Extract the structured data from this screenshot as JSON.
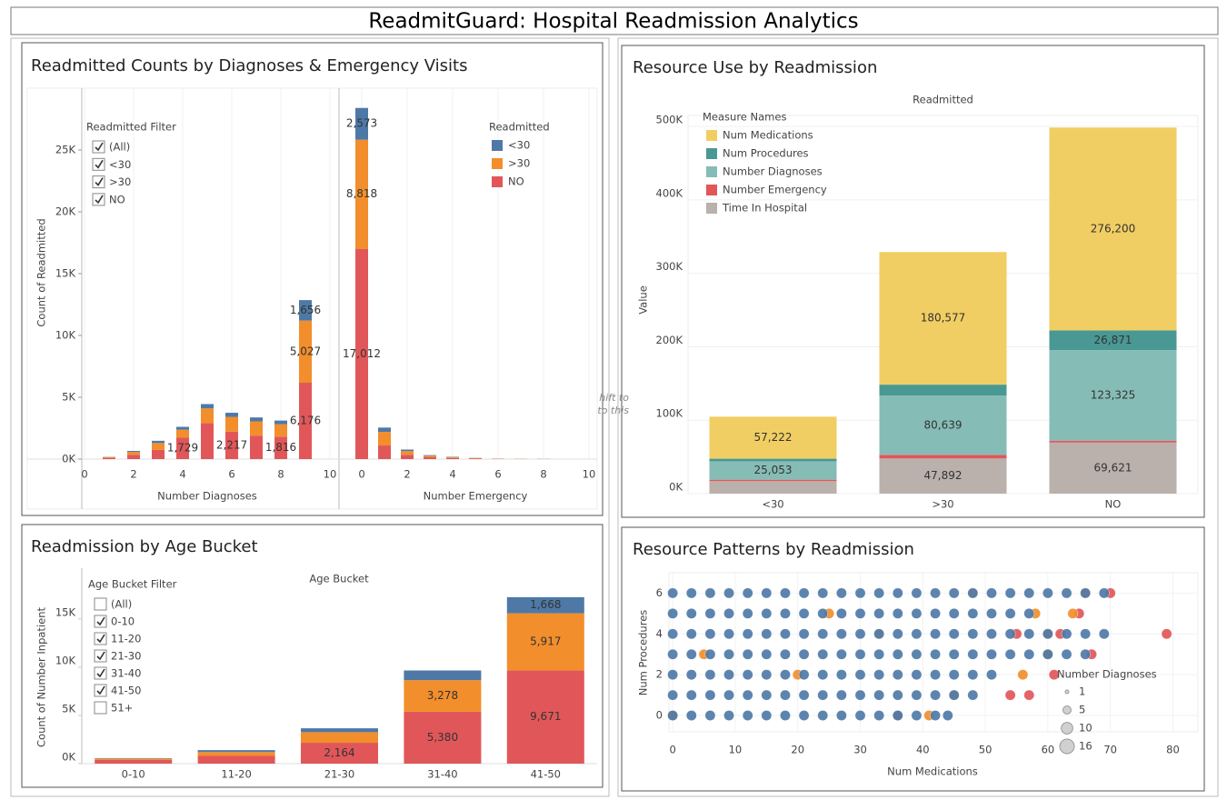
{
  "title": "ReadmitGuard: Hospital Readmission Analytics",
  "chart_data": [
    {
      "type": "bar",
      "stacked": true,
      "title": "Readmitted Counts by Diagnoses & Emergency Visits",
      "y_label": "Count of Readmitted",
      "ylim": [
        0,
        30000
      ],
      "yticks": [
        {
          "value": 0,
          "label": "0K"
        },
        {
          "value": 5000,
          "label": "5K"
        },
        {
          "value": 10000,
          "label": "10K"
        },
        {
          "value": 15000,
          "label": "15K"
        },
        {
          "value": 20000,
          "label": "20K"
        },
        {
          "value": 25000,
          "label": "25K"
        }
      ],
      "grid": true,
      "panels": [
        {
          "x_label": "Number Diagnoses",
          "x": [
            1,
            2,
            3,
            4,
            5,
            6,
            7,
            8,
            9
          ],
          "xlim": [
            0,
            10
          ],
          "xticks": [
            0,
            2,
            4,
            6,
            8,
            10
          ],
          "series": [
            {
              "name": "NO",
              "color": "#e15759",
              "values": [
                100,
                350,
                750,
                1729,
                2900,
                2217,
                1900,
                1816,
                6176
              ],
              "value_labels": [
                null,
                null,
                null,
                "1,729",
                null,
                "2,217",
                null,
                "1,816",
                "6,176"
              ]
            },
            {
              "name": ">30",
              "color": "#f28e2b",
              "values": [
                60,
                230,
                550,
                650,
                1200,
                1200,
                1150,
                1000,
                5027
              ],
              "value_labels": [
                null,
                null,
                null,
                null,
                null,
                null,
                null,
                null,
                "5,027"
              ]
            },
            {
              "name": "<30",
              "color": "#4e79a7",
              "values": [
                20,
                80,
                180,
                230,
                350,
                330,
                320,
                300,
                1656
              ],
              "value_labels": [
                null,
                null,
                null,
                null,
                null,
                null,
                null,
                null,
                "1,656"
              ]
            }
          ]
        },
        {
          "x_label": "Number Emergency",
          "x": [
            0,
            1,
            2,
            3,
            4,
            5,
            6,
            7,
            8
          ],
          "xlim": [
            0,
            10
          ],
          "xticks": [
            0,
            2,
            4,
            6,
            8,
            10
          ],
          "series": [
            {
              "name": "NO",
              "color": "#e15759",
              "values": [
                17012,
                1100,
                350,
                150,
                90,
                40,
                20,
                10,
                8
              ],
              "value_labels": [
                "17,012",
                null,
                null,
                null,
                null,
                null,
                null,
                null,
                null
              ]
            },
            {
              "name": ">30",
              "color": "#f28e2b",
              "values": [
                8818,
                1100,
                300,
                120,
                70,
                40,
                15,
                10,
                6
              ],
              "value_labels": [
                "8,818",
                null,
                null,
                null,
                null,
                null,
                null,
                null,
                null
              ]
            },
            {
              "name": "<30",
              "color": "#4e79a7",
              "values": [
                2573,
                350,
                120,
                50,
                30,
                15,
                5,
                3,
                3
              ],
              "value_labels": [
                "2,573",
                null,
                null,
                null,
                null,
                null,
                null,
                null,
                null
              ]
            }
          ]
        }
      ],
      "legend": {
        "title": "Readmitted",
        "position": "top-right",
        "entries": [
          "<30",
          ">30",
          "NO"
        ],
        "colors": [
          "#4e79a7",
          "#f28e2b",
          "#e15759"
        ]
      },
      "filter": {
        "title": "Readmitted Filter",
        "items": [
          {
            "label": "(All)",
            "checked": true
          },
          {
            "label": "<30",
            "checked": true
          },
          {
            "label": ">30",
            "checked": true
          },
          {
            "label": "NO",
            "checked": true
          }
        ]
      },
      "drag_hint": [
        "hift to",
        "to this"
      ]
    },
    {
      "type": "bar",
      "stacked": true,
      "title": "Resource Use by Readmission",
      "header": "Readmitted",
      "y_label": "Value",
      "categories": [
        "<30",
        ">30",
        "NO"
      ],
      "ylim": [
        0,
        515000
      ],
      "yticks": [
        {
          "value": 0,
          "label": "0K"
        },
        {
          "value": 100000,
          "label": "100K"
        },
        {
          "value": 200000,
          "label": "200K"
        },
        {
          "value": 300000,
          "label": "300K"
        },
        {
          "value": 400000,
          "label": "400K"
        },
        {
          "value": 500000,
          "label": "500K"
        }
      ],
      "grid": true,
      "legend": {
        "title": "Measure Names",
        "position": "top-left"
      },
      "series": [
        {
          "name": "Time In Hospital",
          "color": "#bab0ac",
          "values": [
            17000,
            47892,
            69621
          ],
          "value_labels": [
            null,
            "47,892",
            "69,621"
          ]
        },
        {
          "name": "Number Emergency",
          "color": "#e15759",
          "values": [
            2000,
            4900,
            2500
          ],
          "value_labels": [
            null,
            null,
            null
          ]
        },
        {
          "name": "Number Diagnoses",
          "color": "#86bcb6",
          "values": [
            25053,
            80639,
            123325
          ],
          "value_labels": [
            "25,053",
            "80,639",
            "123,325"
          ]
        },
        {
          "name": "Num Procedures",
          "color": "#499894",
          "values": [
            3500,
            15000,
            26871
          ],
          "value_labels": [
            null,
            null,
            "26,871"
          ]
        },
        {
          "name": "Num Medications",
          "color": "#f1ce63",
          "values": [
            57222,
            180577,
            276200
          ],
          "value_labels": [
            "57,222",
            "180,577",
            "276,200"
          ]
        }
      ]
    },
    {
      "type": "bar",
      "stacked": true,
      "title": "Readmission by Age Bucket",
      "header": "Age Bucket",
      "y_label": "Count of Number Inpatient",
      "categories": [
        "0-10",
        "11-20",
        "21-30",
        "31-40",
        "41-50"
      ],
      "ylim": [
        0,
        18000
      ],
      "yticks": [
        {
          "value": 0,
          "label": "0K"
        },
        {
          "value": 5000,
          "label": "5K"
        },
        {
          "value": 10000,
          "label": "10K"
        },
        {
          "value": 15000,
          "label": "15K"
        }
      ],
      "grid": false,
      "series": [
        {
          "name": "NO",
          "color": "#e15759",
          "values": [
            400,
            800,
            2164,
            5380,
            9671
          ],
          "value_labels": [
            null,
            null,
            "2,164",
            "5,380",
            "9,671"
          ]
        },
        {
          "name": ">30",
          "color": "#f28e2b",
          "values": [
            120,
            400,
            1100,
            3278,
            5917
          ],
          "value_labels": [
            null,
            null,
            null,
            "3,278",
            "5,917"
          ]
        },
        {
          "name": "<30",
          "color": "#4e79a7",
          "values": [
            40,
            200,
            400,
            1000,
            1668
          ],
          "value_labels": [
            null,
            null,
            null,
            null,
            "1,668"
          ]
        }
      ],
      "filter": {
        "title": "Age Bucket Filter",
        "items": [
          {
            "label": "(All)",
            "checked": false
          },
          {
            "label": "0-10",
            "checked": true
          },
          {
            "label": "11-20",
            "checked": true
          },
          {
            "label": "21-30",
            "checked": true
          },
          {
            "label": "31-40",
            "checked": true
          },
          {
            "label": "41-50",
            "checked": true
          },
          {
            "label": "51+",
            "checked": false
          }
        ]
      }
    },
    {
      "type": "scatter",
      "title": "Resource Patterns by Readmission",
      "x_label": "Num Medications",
      "y_label": "Num Procedures",
      "xlim": [
        -0.6,
        84
      ],
      "ylim": [
        -0.8,
        7
      ],
      "xticks": [
        0,
        10,
        20,
        30,
        40,
        50,
        60,
        70,
        80
      ],
      "yticks": [
        0,
        2,
        4,
        6
      ],
      "grid": true,
      "size_legend": {
        "title": "Number Diagnoses",
        "position": "bottom-right",
        "values": [
          1,
          5,
          10,
          16
        ]
      },
      "series": [
        {
          "name": "NO",
          "color": "#e15759",
          "x": [
            79,
            54,
            67,
            62,
            61,
            65,
            70,
            36,
            57,
            60,
            55
          ],
          "y": [
            4,
            1,
            3,
            4,
            2,
            5,
            6,
            0,
            1,
            3,
            4
          ],
          "size": [
            8,
            8,
            8,
            8,
            8,
            8,
            8,
            8,
            8,
            8,
            8
          ]
        },
        {
          "name": ">30",
          "color": "#f28e2b",
          "x": [
            41,
            45,
            60,
            56,
            58,
            66,
            60,
            5,
            20,
            33,
            48,
            25,
            0,
            64
          ],
          "y": [
            0,
            1,
            3,
            2,
            5,
            6,
            4,
            3,
            2,
            4,
            6,
            5,
            0,
            5
          ],
          "size": [
            8,
            8,
            8,
            8,
            8,
            8,
            8,
            8,
            8,
            8,
            8,
            8,
            8,
            8
          ]
        },
        {
          "name": "<30",
          "color": "#4e79a7",
          "x": [
            0,
            3,
            6,
            9,
            12,
            15,
            18,
            21,
            24,
            27,
            30,
            33,
            36,
            39,
            42,
            44,
            0,
            3,
            6,
            9,
            12,
            15,
            18,
            21,
            24,
            27,
            30,
            33,
            36,
            39,
            42,
            45,
            48,
            0,
            3,
            6,
            9,
            12,
            15,
            18,
            21,
            24,
            27,
            30,
            33,
            36,
            39,
            42,
            45,
            48,
            51,
            0,
            3,
            6,
            9,
            12,
            15,
            18,
            21,
            24,
            27,
            30,
            33,
            36,
            39,
            42,
            45,
            48,
            51,
            54,
            57,
            60,
            63,
            66,
            0,
            3,
            6,
            9,
            12,
            15,
            18,
            21,
            24,
            27,
            30,
            33,
            36,
            39,
            42,
            45,
            48,
            51,
            54,
            57,
            60,
            63,
            66,
            69,
            0,
            3,
            6,
            9,
            12,
            15,
            18,
            21,
            24,
            27,
            30,
            33,
            36,
            39,
            42,
            45,
            48,
            51,
            54,
            57,
            0,
            3,
            6,
            9,
            12,
            15,
            18,
            21,
            24,
            27,
            30,
            33,
            36,
            39,
            42,
            45,
            48,
            51,
            54,
            57,
            60,
            63,
            66,
            69
          ],
          "y": [
            0,
            0,
            0,
            0,
            0,
            0,
            0,
            0,
            0,
            0,
            0,
            0,
            0,
            0,
            0,
            0,
            1,
            1,
            1,
            1,
            1,
            1,
            1,
            1,
            1,
            1,
            1,
            1,
            1,
            1,
            1,
            1,
            1,
            2,
            2,
            2,
            2,
            2,
            2,
            2,
            2,
            2,
            2,
            2,
            2,
            2,
            2,
            2,
            2,
            2,
            2,
            3,
            3,
            3,
            3,
            3,
            3,
            3,
            3,
            3,
            3,
            3,
            3,
            3,
            3,
            3,
            3,
            3,
            3,
            3,
            3,
            3,
            3,
            3,
            4,
            4,
            4,
            4,
            4,
            4,
            4,
            4,
            4,
            4,
            4,
            4,
            4,
            4,
            4,
            4,
            4,
            4,
            4,
            4,
            4,
            4,
            4,
            4,
            5,
            5,
            5,
            5,
            5,
            5,
            5,
            5,
            5,
            5,
            5,
            5,
            5,
            5,
            5,
            5,
            5,
            5,
            5,
            5,
            6,
            6,
            6,
            6,
            6,
            6,
            6,
            6,
            6,
            6,
            6,
            6,
            6,
            6,
            6,
            6,
            6,
            6,
            6,
            6,
            6,
            6,
            6,
            6
          ],
          "size": [
            8,
            8,
            8,
            8,
            8,
            8,
            8,
            8,
            8,
            8,
            8,
            8,
            8,
            8,
            8,
            8,
            8,
            8,
            8,
            8,
            8,
            8,
            8,
            8,
            8,
            8,
            8,
            8,
            8,
            8,
            8,
            8,
            8,
            8,
            8,
            8,
            8,
            8,
            8,
            8,
            8,
            8,
            8,
            8,
            8,
            8,
            8,
            8,
            8,
            8,
            8,
            8,
            8,
            8,
            8,
            8,
            8,
            8,
            8,
            8,
            8,
            8,
            8,
            8,
            8,
            8,
            8,
            8,
            8,
            8,
            8,
            8,
            8,
            8,
            8,
            8,
            8,
            8,
            8,
            8,
            8,
            8,
            8,
            8,
            8,
            8,
            8,
            8,
            8,
            8,
            8,
            8,
            8,
            8,
            8,
            8,
            8,
            8,
            8,
            8,
            8,
            8,
            8,
            8,
            8,
            8,
            8,
            8,
            8,
            8,
            8,
            8,
            8,
            8,
            8,
            8,
            8,
            8,
            8,
            8,
            8,
            8,
            8,
            8,
            8,
            8,
            8,
            8,
            8,
            8,
            8,
            8,
            8,
            8,
            8,
            8,
            8,
            8,
            8,
            8,
            8,
            8
          ]
        }
      ]
    }
  ]
}
